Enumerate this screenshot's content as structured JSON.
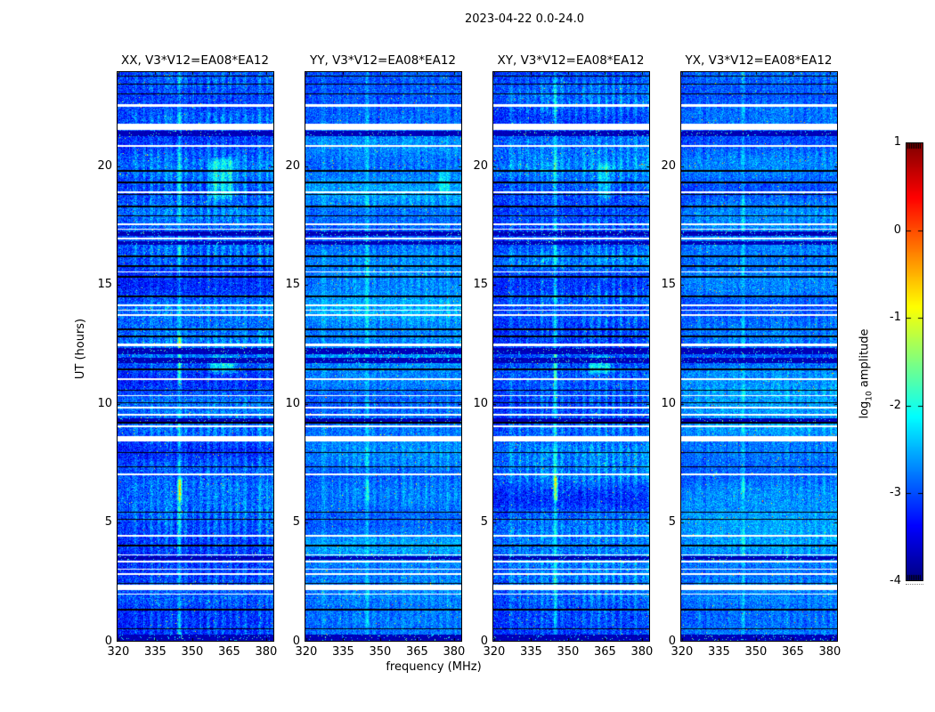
{
  "figure": {
    "title": "2023-04-22 0.0-24.0",
    "xlabel": "frequency (MHz)",
    "ylabel": "UT (hours)",
    "colorbar_label": {
      "pre": "log",
      "sub": "10",
      "post": " amplitude"
    }
  },
  "chart_data": {
    "type": "heatmap",
    "title": "2023-04-22 0.0-24.0",
    "xlabel": "frequency (MHz)",
    "ylabel": "UT (hours)",
    "x_range_mhz": [
      319.3,
      383.3
    ],
    "x_ticks": [
      320,
      335,
      350,
      365,
      380
    ],
    "y_range_hours": [
      0,
      24
    ],
    "y_ticks": [
      0,
      5,
      10,
      15,
      20
    ],
    "colorbar": {
      "label": "log10 amplitude",
      "range": [
        -4,
        1
      ],
      "ticks": [
        1,
        0,
        -1,
        -2,
        -3,
        -4
      ],
      "colormap": "jet"
    },
    "panels": [
      {
        "title": "XX, V3*V12=EA08*EA12",
        "base_level": -3.1,
        "noise": 0.5,
        "streak_gain": 1.0,
        "seed": 11,
        "blobs": [
          [
            5.8,
            7.0,
            343.8,
            346.2,
            1.9
          ],
          [
            10.8,
            13.0,
            343.8,
            346.0,
            1.3
          ],
          [
            18.5,
            20.4,
            356.5,
            367.5,
            0.75
          ],
          [
            11.2,
            12.1,
            357.0,
            368.0,
            0.85
          ]
        ]
      },
      {
        "title": "YY, V3*V12=EA08*EA12",
        "base_level": -2.8,
        "noise": 0.42,
        "streak_gain": 0.55,
        "seed": 22,
        "blobs": [
          [
            18.8,
            19.9,
            373.0,
            379.0,
            0.5
          ],
          [
            5.9,
            6.9,
            344.2,
            345.8,
            0.8
          ]
        ]
      },
      {
        "title": "XY, V3*V12=EA08*EA12",
        "base_level": -3.05,
        "noise": 0.5,
        "streak_gain": 0.95,
        "seed": 33,
        "blobs": [
          [
            5.8,
            7.0,
            343.8,
            346.2,
            1.8
          ],
          [
            10.8,
            12.4,
            343.8,
            346.0,
            1.2
          ],
          [
            11.2,
            12.1,
            358.0,
            368.0,
            0.9
          ],
          [
            18.5,
            20.2,
            362.0,
            368.0,
            0.6
          ]
        ]
      },
      {
        "title": "YX, V3*V12=EA08*EA12",
        "base_level": -2.85,
        "noise": 0.42,
        "streak_gain": 0.6,
        "seed": 44,
        "blobs": [
          [
            5.9,
            6.9,
            344.2,
            345.8,
            0.9
          ],
          [
            18.6,
            19.8,
            334.5,
            336.0,
            0.5
          ]
        ]
      }
    ],
    "rfi_lines": [
      [
        327.0,
        0.5,
        0.8
      ],
      [
        330.5,
        0.35,
        0.6
      ],
      [
        333.5,
        0.45,
        0.7
      ],
      [
        336.5,
        0.4,
        0.6
      ],
      [
        339.5,
        0.5,
        0.8
      ],
      [
        341.5,
        0.45,
        0.6
      ],
      [
        344.8,
        1.1,
        0.9
      ],
      [
        347.5,
        0.4,
        0.6
      ],
      [
        350.5,
        0.35,
        0.6
      ],
      [
        353.5,
        0.4,
        0.6
      ],
      [
        356.5,
        0.45,
        0.7
      ],
      [
        359.5,
        0.5,
        0.8
      ],
      [
        362.5,
        0.55,
        0.8
      ],
      [
        365.5,
        0.5,
        0.7
      ],
      [
        368.5,
        0.45,
        0.7
      ],
      [
        371.5,
        0.55,
        0.8
      ],
      [
        374.5,
        0.4,
        0.6
      ],
      [
        377.5,
        0.6,
        0.8
      ],
      [
        380.5,
        0.5,
        0.7
      ],
      [
        382.5,
        0.45,
        0.6
      ]
    ],
    "time_features": {
      "white_bands": [
        [
          22.52,
          22.6
        ],
        [
          21.52,
          21.78
        ],
        [
          20.82,
          20.89
        ],
        [
          18.88,
          18.94
        ],
        [
          17.52,
          17.58
        ],
        [
          17.32,
          17.38
        ],
        [
          16.92,
          17.0
        ],
        [
          15.52,
          15.58
        ],
        [
          14.12,
          14.18
        ],
        [
          13.92,
          13.98
        ],
        [
          13.72,
          13.78
        ],
        [
          12.42,
          12.56
        ],
        [
          11.02,
          11.08
        ],
        [
          10.32,
          10.38
        ],
        [
          9.82,
          9.88
        ],
        [
          9.52,
          9.6
        ],
        [
          9.02,
          9.08
        ],
        [
          8.42,
          8.65
        ],
        [
          7.02,
          7.08
        ],
        [
          4.42,
          4.48
        ],
        [
          3.62,
          3.68
        ],
        [
          3.32,
          3.42
        ],
        [
          3.02,
          3.08
        ],
        [
          2.82,
          2.88
        ],
        [
          2.18,
          2.38
        ],
        [
          1.98,
          2.04
        ]
      ],
      "black_lines": [
        [
          23.78,
          23.82
        ],
        [
          23.42,
          23.46
        ],
        [
          23.02,
          23.08
        ],
        [
          19.78,
          19.84
        ],
        [
          19.28,
          19.34
        ],
        [
          18.78,
          18.84
        ],
        [
          18.28,
          18.34
        ],
        [
          17.88,
          17.94
        ],
        [
          16.18,
          16.24
        ],
        [
          15.78,
          15.84
        ],
        [
          15.32,
          15.38
        ],
        [
          14.5,
          14.56
        ],
        [
          13.12,
          13.18
        ],
        [
          12.82,
          12.88
        ],
        [
          11.42,
          11.48
        ],
        [
          10.55,
          10.6
        ],
        [
          10.02,
          10.08
        ],
        [
          9.18,
          9.24
        ],
        [
          7.92,
          7.98
        ],
        [
          7.32,
          7.38
        ],
        [
          5.42,
          5.48
        ],
        [
          5.12,
          5.18
        ],
        [
          4.02,
          4.08
        ],
        [
          2.42,
          2.48
        ],
        [
          1.32,
          1.38
        ],
        [
          0.52,
          0.58
        ]
      ],
      "dark_bands": [
        [
          21.28,
          21.5
        ],
        [
          17.08,
          17.26
        ],
        [
          16.7,
          16.86
        ],
        [
          12.08,
          12.34
        ],
        [
          11.72,
          11.94
        ],
        [
          9.24,
          9.4
        ],
        [
          3.44,
          3.58
        ],
        [
          0.02,
          0.3
        ]
      ]
    }
  }
}
